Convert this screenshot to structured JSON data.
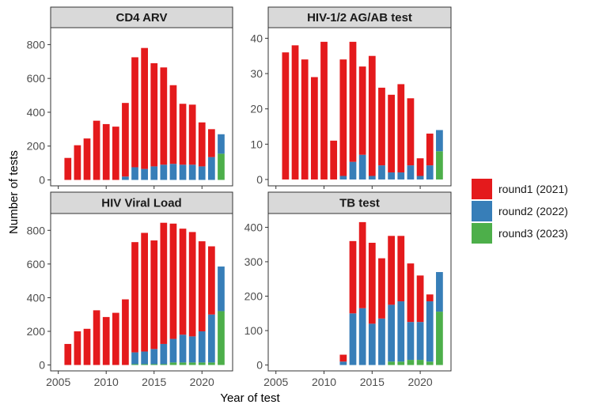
{
  "chart_data": {
    "type": "bar",
    "stacked": true,
    "xlabel": "Year of test",
    "ylabel": "Number of tests",
    "x_ticks": [
      2005,
      2010,
      2015,
      2020
    ],
    "xlim": [
      2004.2,
      2023.2
    ],
    "legend": {
      "position": "right",
      "entries": [
        {
          "name": "round1 (2021)",
          "color": "#e41a1c"
        },
        {
          "name": "round2 (2022)",
          "color": "#377eb8"
        },
        {
          "name": "round3 (2023)",
          "color": "#4daf4a"
        }
      ]
    },
    "panels": [
      {
        "title": "CD4 ARV",
        "ylim": [
          -35,
          900
        ],
        "y_ticks": [
          0,
          200,
          400,
          600,
          800
        ],
        "x": [
          2006,
          2007,
          2008,
          2009,
          2010,
          2011,
          2012,
          2013,
          2014,
          2015,
          2016,
          2017,
          2018,
          2019,
          2020,
          2021,
          2022
        ],
        "series": [
          {
            "name": "round3 (2023)",
            "values": [
              0,
              0,
              0,
              0,
              0,
              0,
              0,
              0,
              0,
              0,
              0,
              0,
              0,
              0,
              0,
              0,
              155
            ]
          },
          {
            "name": "round2 (2022)",
            "values": [
              0,
              0,
              0,
              0,
              0,
              0,
              20,
              75,
              65,
              80,
              90,
              95,
              90,
              90,
              80,
              135,
              115
            ]
          },
          {
            "name": "round1 (2021)",
            "values": [
              130,
              205,
              245,
              350,
              330,
              315,
              435,
              650,
              715,
              610,
              575,
              465,
              360,
              355,
              260,
              165,
              0
            ]
          }
        ]
      },
      {
        "title": "HIV-1/2 AG/AB test",
        "ylim": [
          -1.8,
          43
        ],
        "y_ticks": [
          0,
          10,
          20,
          30,
          40
        ],
        "x": [
          2006,
          2007,
          2008,
          2009,
          2010,
          2011,
          2012,
          2013,
          2014,
          2015,
          2016,
          2017,
          2018,
          2019,
          2020,
          2021,
          2022
        ],
        "series": [
          {
            "name": "round3 (2023)",
            "values": [
              0,
              0,
              0,
              0,
              0,
              0,
              0,
              0,
              0,
              0,
              0,
              0,
              0,
              0,
              0,
              0,
              8
            ]
          },
          {
            "name": "round2 (2022)",
            "values": [
              0,
              0,
              0,
              0,
              0,
              0,
              1,
              5,
              7,
              1,
              4,
              2,
              2,
              4,
              1,
              4,
              6
            ]
          },
          {
            "name": "round1 (2021)",
            "values": [
              36,
              38,
              34,
              29,
              39,
              11,
              33,
              34,
              25,
              34,
              22,
              22,
              25,
              19,
              5,
              9,
              0
            ]
          }
        ]
      },
      {
        "title": "HIV Viral Load",
        "ylim": [
          -35,
          900
        ],
        "y_ticks": [
          0,
          200,
          400,
          600,
          800
        ],
        "x": [
          2006,
          2007,
          2008,
          2009,
          2010,
          2011,
          2012,
          2013,
          2014,
          2015,
          2016,
          2017,
          2018,
          2019,
          2020,
          2021,
          2022
        ],
        "series": [
          {
            "name": "round3 (2023)",
            "values": [
              0,
              0,
              0,
              0,
              0,
              0,
              0,
              5,
              5,
              5,
              5,
              15,
              15,
              15,
              15,
              15,
              320
            ]
          },
          {
            "name": "round2 (2022)",
            "values": [
              0,
              0,
              0,
              0,
              0,
              0,
              0,
              70,
              75,
              90,
              120,
              140,
              165,
              155,
              185,
              285,
              265
            ]
          },
          {
            "name": "round1 (2021)",
            "values": [
              125,
              200,
              215,
              325,
              285,
              310,
              390,
              655,
              705,
              645,
              720,
              685,
              630,
              620,
              535,
              405,
              0
            ]
          }
        ]
      },
      {
        "title": "TB test",
        "ylim": [
          -17,
          440
        ],
        "y_ticks": [
          0,
          100,
          200,
          300,
          400
        ],
        "x": [
          2006,
          2007,
          2008,
          2009,
          2010,
          2011,
          2012,
          2013,
          2014,
          2015,
          2016,
          2017,
          2018,
          2019,
          2020,
          2021,
          2022
        ],
        "series": [
          {
            "name": "round3 (2023)",
            "values": [
              0,
              0,
              0,
              0,
              0,
              0,
              0,
              0,
              0,
              0,
              0,
              10,
              10,
              15,
              15,
              10,
              155
            ]
          },
          {
            "name": "round2 (2022)",
            "values": [
              0,
              0,
              0,
              0,
              0,
              0,
              10,
              150,
              165,
              120,
              135,
              165,
              175,
              110,
              110,
              175,
              115
            ]
          },
          {
            "name": "round1 (2021)",
            "values": [
              0,
              0,
              0,
              0,
              0,
              0,
              20,
              210,
              250,
              235,
              175,
              200,
              190,
              170,
              135,
              20,
              0
            ]
          }
        ]
      }
    ]
  }
}
